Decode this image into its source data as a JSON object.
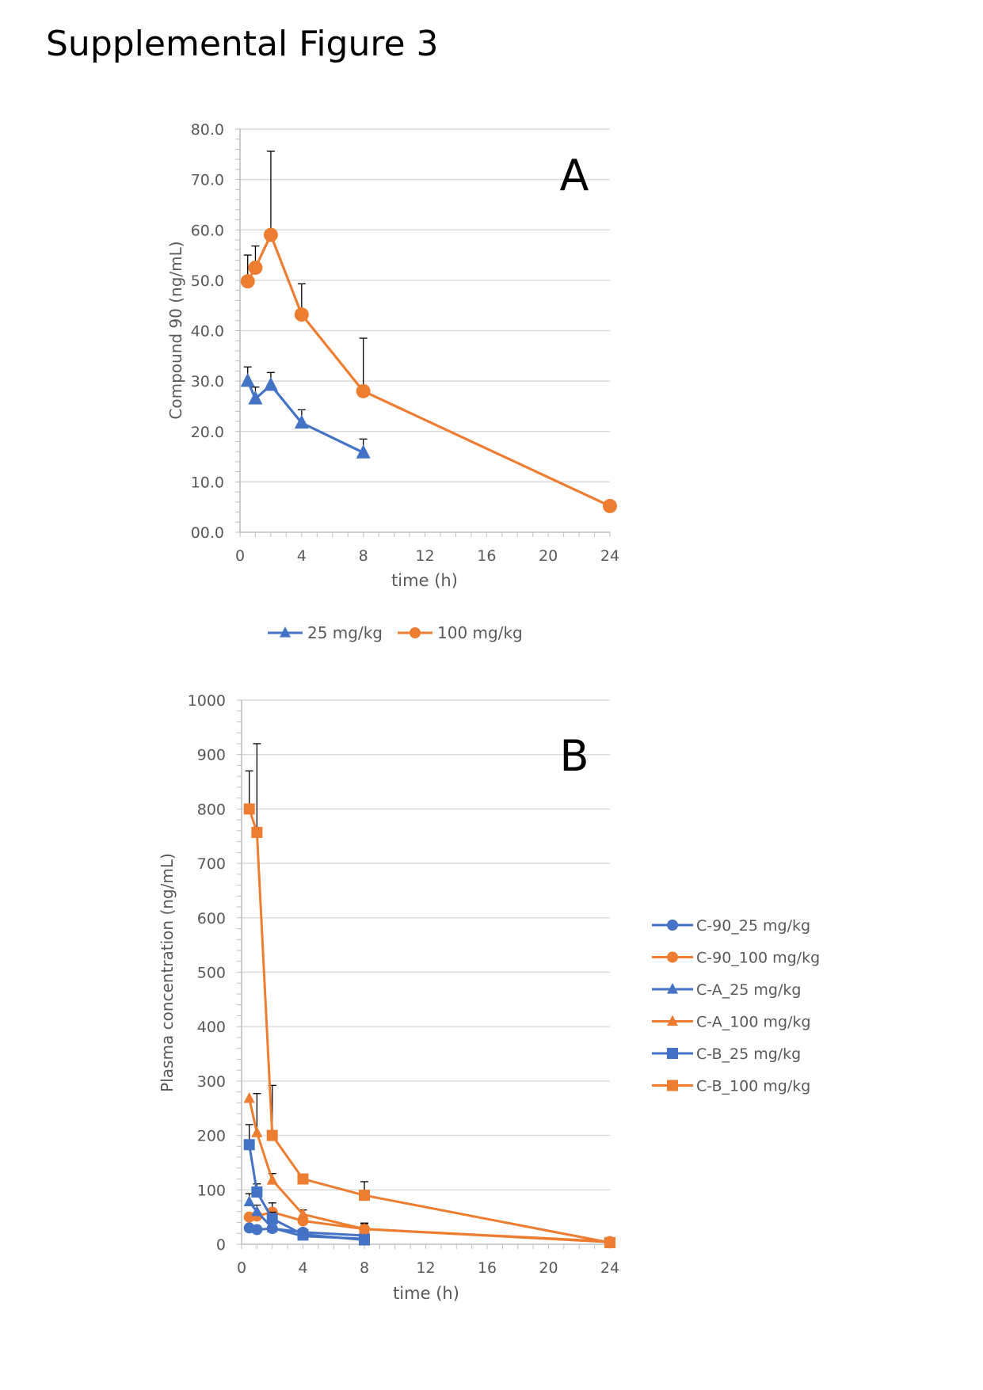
{
  "page_title": "Supplemental Figure 3",
  "colors": {
    "blue": "#4472C4",
    "orange": "#ED7D31",
    "grid": "#d9d9d9",
    "axis": "#bfbfbf",
    "text": "#595959",
    "errorbar": "#000000"
  },
  "chart_data": [
    {
      "panel": "A",
      "type": "line",
      "xlabel": "time (h)",
      "ylabel": "Compound 90 (ng/mL)",
      "xlim": [
        0,
        24
      ],
      "ylim": [
        0,
        80
      ],
      "xticks": [
        "0",
        "4",
        "8",
        "12",
        "16",
        "20",
        "24"
      ],
      "yticks": [
        "00.0",
        "10.0",
        "20.0",
        "30.0",
        "40.0",
        "50.0",
        "60.0",
        "70.0",
        "80.0"
      ],
      "legend_position": "bottom",
      "series": [
        {
          "name": "25 mg/kg",
          "color": "#4472C4",
          "marker": "triangle",
          "x": [
            0.5,
            1,
            2,
            4,
            8
          ],
          "y": [
            30.0,
            26.5,
            29.2,
            21.7,
            15.8
          ],
          "err": [
            2.8,
            2.3,
            2.5,
            2.6,
            2.7
          ]
        },
        {
          "name": "100 mg/kg",
          "color": "#ED7D31",
          "marker": "circle",
          "x": [
            0.5,
            1,
            2,
            4,
            8,
            24
          ],
          "y": [
            49.8,
            52.5,
            59.0,
            43.2,
            28.0,
            5.2
          ],
          "err": [
            5.2,
            4.3,
            16.6,
            6.1,
            10.5,
            1.0
          ]
        }
      ]
    },
    {
      "panel": "B",
      "type": "line",
      "xlabel": "time (h)",
      "ylabel": "Plasma concentration (ng/mL)",
      "xlim": [
        0,
        24
      ],
      "ylim": [
        0,
        1000
      ],
      "xticks": [
        "0",
        "4",
        "8",
        "12",
        "16",
        "20",
        "24"
      ],
      "yticks": [
        "0",
        "100",
        "200",
        "300",
        "400",
        "500",
        "600",
        "700",
        "800",
        "900",
        "1000"
      ],
      "legend_position": "right",
      "series": [
        {
          "name": "C-90_25 mg/kg",
          "color": "#4472C4",
          "marker": "circle",
          "x": [
            0.5,
            1,
            2,
            4,
            8
          ],
          "y": [
            30,
            27,
            29,
            22,
            16
          ],
          "err": [
            3,
            2,
            3,
            3,
            3
          ]
        },
        {
          "name": "C-90_100 mg/kg",
          "color": "#ED7D31",
          "marker": "circle",
          "x": [
            0.5,
            1,
            2,
            4,
            8,
            24
          ],
          "y": [
            50,
            52,
            59,
            43,
            28,
            5
          ],
          "err": [
            5,
            4,
            17,
            6,
            11,
            1
          ]
        },
        {
          "name": "C-A_25 mg/kg",
          "color": "#4472C4",
          "marker": "triangle",
          "x": [
            0.5,
            1,
            2,
            4,
            8
          ],
          "y": [
            78,
            60,
            30,
            15,
            10
          ],
          "err": [
            15,
            12,
            8,
            5,
            3
          ]
        },
        {
          "name": "C-A_100 mg/kg",
          "color": "#ED7D31",
          "marker": "triangle",
          "x": [
            0.5,
            1,
            2,
            4,
            8,
            24
          ],
          "y": [
            268,
            205,
            118,
            55,
            28,
            4
          ],
          "err": [
            0,
            72,
            12,
            8,
            10,
            1
          ]
        },
        {
          "name": "C-B_25 mg/kg",
          "color": "#4472C4",
          "marker": "square",
          "x": [
            0.5,
            1,
            2,
            4,
            8
          ],
          "y": [
            183,
            96,
            47,
            18,
            8
          ],
          "err": [
            37,
            15,
            12,
            5,
            3
          ]
        },
        {
          "name": "C-B_100 mg/kg",
          "color": "#ED7D31",
          "marker": "square",
          "x": [
            0.5,
            1,
            2,
            4,
            8,
            24
          ],
          "y": [
            800,
            757,
            200,
            120,
            90,
            3
          ],
          "err": [
            70,
            163,
            92,
            8,
            25,
            2
          ]
        }
      ]
    }
  ]
}
